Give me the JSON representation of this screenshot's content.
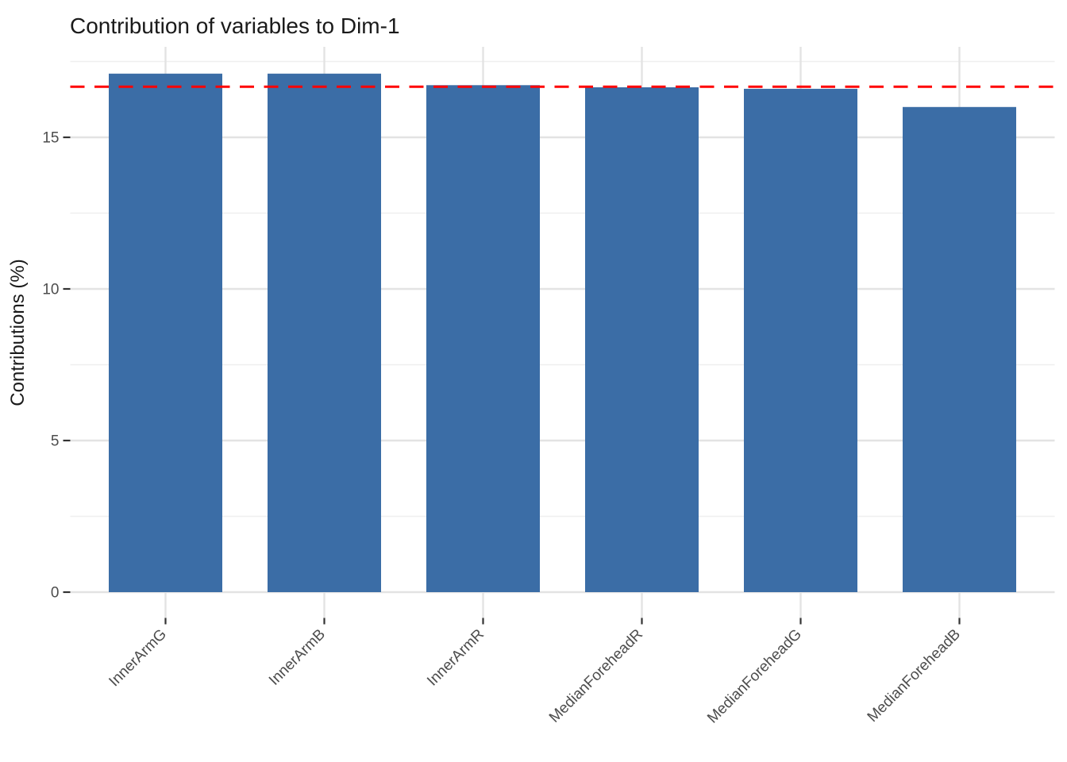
{
  "chart_data": {
    "type": "bar",
    "title": "Contribution of variables to Dim-1",
    "xlabel": "",
    "ylabel": "Contributions (%)",
    "categories": [
      "InnerArmG",
      "InnerArmB",
      "InnerArmR",
      "MedianForeheadR",
      "MedianForeheadG",
      "MedianForeheadB"
    ],
    "values": [
      17.1,
      17.1,
      16.72,
      16.65,
      16.6,
      16.0
    ],
    "ylim": [
      0,
      18
    ],
    "yticks": [
      0,
      5,
      10,
      15
    ],
    "ytick_labels": [
      "0",
      "5",
      "10",
      "15"
    ],
    "minor_yticks": [
      2.5,
      7.5,
      12.5,
      17.5
    ],
    "reference_line": {
      "value": 16.67,
      "style": "dashed",
      "color": "#ff0000"
    },
    "grid": true,
    "legend_position": "none",
    "colors": {
      "bar_fill": "#3B6DA6",
      "grid_major": "#e3e3e3",
      "grid_minor": "#efefef",
      "tick_mark": "#333333",
      "axis_text": "#4d4d4d",
      "title_text": "#1a1a1a"
    }
  }
}
